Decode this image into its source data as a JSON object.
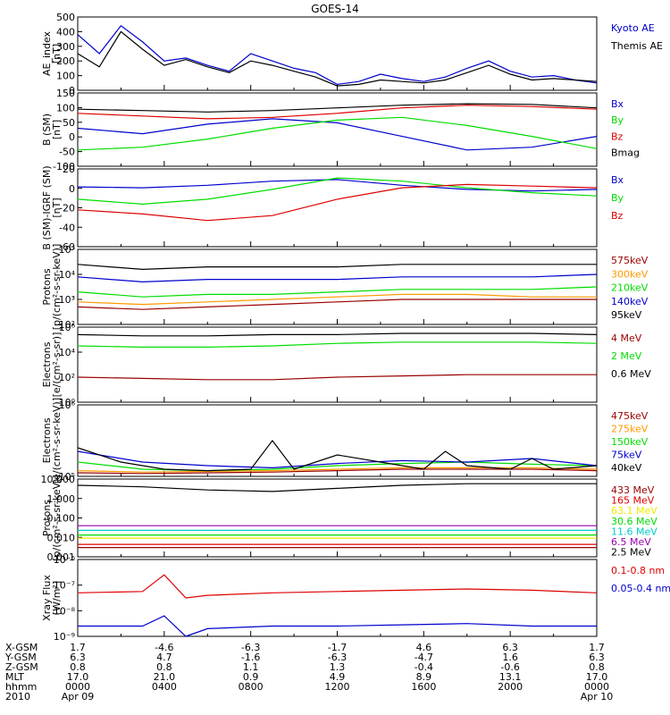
{
  "title": "GOES-14",
  "colors": {
    "black": "#000000",
    "blue": "#0000cc",
    "green": "#00dd00",
    "red": "#dd0000",
    "orange": "#ff9900",
    "darkred": "#990000",
    "yellow": "#eeee00",
    "cyan": "#00cccc",
    "teal": "#00bbbb",
    "purple": "#9900aa"
  },
  "time_axis": {
    "rows": [
      {
        "label": "X-GSM",
        "values": [
          "1.7",
          "-4.6",
          "-6.3",
          "-1.7",
          "4.6",
          "6.3",
          "1.7"
        ]
      },
      {
        "label": "Y-GSM",
        "values": [
          "6.3",
          "4.7",
          "-1.6",
          "-6.3",
          "-4.7",
          "1.6",
          "6.3"
        ]
      },
      {
        "label": "Z-GSM",
        "values": [
          "0.8",
          "0.8",
          "1.1",
          "1.3",
          "-0.4",
          "-0.6",
          "0.8"
        ]
      },
      {
        "label": "MLT",
        "values": [
          "17.0",
          "21.0",
          "0.9",
          "4.9",
          "8.9",
          "13.1",
          "17.0"
        ]
      },
      {
        "label": "hhmm",
        "values": [
          "0000",
          "0400",
          "0800",
          "1200",
          "1600",
          "2000",
          "0000"
        ]
      },
      {
        "label": "2010",
        "values": [
          "Apr 09",
          "",
          "",
          "",
          "",
          "",
          "Apr 10"
        ]
      }
    ]
  },
  "chart_data": [
    {
      "type": "line",
      "ylabel": "AE_index\n[nT]",
      "ylim": [
        0,
        500
      ],
      "scale": "linear",
      "yticks": [
        "500",
        "400",
        "300",
        "200",
        "100",
        "0"
      ],
      "series": [
        {
          "name": "Kyoto AE",
          "color": "#0000cc",
          "x": [
            0,
            1,
            2,
            3,
            4,
            5,
            6,
            7,
            8,
            9,
            10,
            11,
            12,
            13,
            14,
            15,
            16,
            17,
            18,
            19,
            20,
            21,
            22,
            23,
            24
          ],
          "y": [
            380,
            250,
            440,
            330,
            200,
            220,
            170,
            130,
            250,
            200,
            150,
            120,
            40,
            60,
            110,
            80,
            60,
            90,
            150,
            200,
            130,
            90,
            100,
            70,
            50
          ]
        },
        {
          "name": "Themis AE",
          "color": "#000000",
          "x": [
            0,
            1,
            2,
            3,
            4,
            5,
            6,
            7,
            8,
            9,
            10,
            11,
            12,
            13,
            14,
            15,
            16,
            17,
            18,
            19,
            20,
            21,
            22,
            23,
            24
          ],
          "y": [
            250,
            160,
            400,
            280,
            170,
            210,
            160,
            120,
            200,
            170,
            130,
            90,
            30,
            40,
            70,
            60,
            50,
            70,
            120,
            170,
            110,
            70,
            80,
            70,
            60
          ]
        }
      ]
    },
    {
      "type": "line",
      "ylabel": "B (SM)\n[nT]",
      "ylim": [
        -120,
        150
      ],
      "scale": "linear",
      "yticks": [
        "150",
        "100",
        "50",
        "0",
        "-50",
        "-100"
      ],
      "series": [
        {
          "name": "Bx",
          "color": "#0000cc",
          "x": [
            0,
            3,
            6,
            9,
            12,
            15,
            18,
            21,
            24
          ],
          "y": [
            20,
            0,
            35,
            55,
            40,
            -10,
            -60,
            -50,
            -10
          ]
        },
        {
          "name": "By",
          "color": "#00dd00",
          "x": [
            0,
            3,
            6,
            9,
            12,
            15,
            18,
            21,
            24
          ],
          "y": [
            -60,
            -50,
            -20,
            20,
            50,
            60,
            30,
            -10,
            -55
          ]
        },
        {
          "name": "Bz",
          "color": "#dd0000",
          "x": [
            0,
            3,
            6,
            9,
            12,
            15,
            18,
            21,
            24
          ],
          "y": [
            75,
            65,
            55,
            60,
            75,
            95,
            105,
            100,
            90
          ]
        },
        {
          "name": "Bmag",
          "color": "#000000",
          "x": [
            0,
            3,
            6,
            9,
            12,
            15,
            18,
            21,
            24
          ],
          "y": [
            90,
            85,
            80,
            85,
            95,
            105,
            110,
            108,
            95
          ]
        }
      ]
    },
    {
      "type": "line",
      "ylabel": "B (SM)-IGRF (SM)\n[nT]",
      "ylim": [
        -70,
        25
      ],
      "scale": "linear",
      "yticks": [
        "20",
        "0",
        "-20",
        "-40",
        "-60"
      ],
      "series": [
        {
          "name": "Bx",
          "color": "#0000cc",
          "x": [
            0,
            3,
            6,
            9,
            12,
            15,
            18,
            21,
            24
          ],
          "y": [
            3,
            2,
            5,
            10,
            12,
            5,
            0,
            -2,
            0
          ]
        },
        {
          "name": "By",
          "color": "#00dd00",
          "x": [
            0,
            3,
            6,
            9,
            12,
            15,
            18,
            21,
            24
          ],
          "y": [
            -12,
            -18,
            -12,
            0,
            14,
            10,
            2,
            -4,
            -8
          ]
        },
        {
          "name": "Bz",
          "color": "#dd0000",
          "x": [
            0,
            3,
            6,
            9,
            12,
            15,
            18,
            21,
            24
          ],
          "y": [
            -25,
            -30,
            -38,
            -32,
            -12,
            2,
            6,
            4,
            2
          ]
        }
      ]
    },
    {
      "type": "line",
      "ylabel": "Protons\n[p/(cm²-s-sr-keV)]",
      "ylim": [
        2,
        5
      ],
      "scale": "log",
      "yticks": [
        "10⁵",
        "10⁴",
        "10³",
        "10²"
      ],
      "series": [
        {
          "name": "575keV",
          "color": "#990000",
          "x": [
            0,
            3,
            6,
            9,
            12,
            15,
            18,
            21,
            24
          ],
          "y": [
            2.7,
            2.6,
            2.7,
            2.8,
            2.9,
            3.0,
            3.0,
            3.0,
            3.0
          ]
        },
        {
          "name": "300keV",
          "color": "#ff9900",
          "x": [
            0,
            3,
            6,
            9,
            12,
            15,
            18,
            21,
            24
          ],
          "y": [
            2.9,
            2.8,
            2.9,
            3.0,
            3.1,
            3.2,
            3.2,
            3.1,
            3.1
          ]
        },
        {
          "name": "210keV",
          "color": "#00dd00",
          "x": [
            0,
            3,
            6,
            9,
            12,
            15,
            18,
            21,
            24
          ],
          "y": [
            3.3,
            3.1,
            3.2,
            3.2,
            3.3,
            3.4,
            3.4,
            3.4,
            3.5
          ]
        },
        {
          "name": "140keV",
          "color": "#0000cc",
          "x": [
            0,
            3,
            6,
            9,
            12,
            15,
            18,
            21,
            24
          ],
          "y": [
            3.9,
            3.7,
            3.8,
            3.8,
            3.8,
            3.9,
            3.9,
            3.9,
            4.0
          ]
        },
        {
          "name": "95keV",
          "color": "#000000",
          "x": [
            0,
            3,
            6,
            9,
            12,
            15,
            18,
            21,
            24
          ],
          "y": [
            4.4,
            4.2,
            4.3,
            4.3,
            4.3,
            4.4,
            4.4,
            4.4,
            4.4
          ]
        }
      ]
    },
    {
      "type": "line",
      "ylabel": "Electrons\n[e/(cm²-s-sr)]",
      "ylim": [
        0,
        6
      ],
      "scale": "log",
      "yticks": [
        "10⁶",
        "10⁴",
        "10²",
        "10⁰"
      ],
      "series": [
        {
          "name": "4 MeV",
          "color": "#990000",
          "x": [
            0,
            3,
            6,
            9,
            12,
            15,
            18,
            21,
            24
          ],
          "y": [
            2,
            1.9,
            1.8,
            1.8,
            2.0,
            2.1,
            2.2,
            2.2,
            2.2
          ]
        },
        {
          "name": "2 MeV",
          "color": "#00dd00",
          "x": [
            0,
            3,
            6,
            9,
            12,
            15,
            18,
            21,
            24
          ],
          "y": [
            4.5,
            4.4,
            4.4,
            4.5,
            4.7,
            4.8,
            4.8,
            4.8,
            4.7
          ]
        },
        {
          "name": "0.6 MeV",
          "color": "#000000",
          "x": [
            0,
            3,
            6,
            9,
            12,
            15,
            18,
            21,
            24
          ],
          "y": [
            5.4,
            5.3,
            5.3,
            5.4,
            5.4,
            5.5,
            5.5,
            5.5,
            5.4
          ]
        }
      ]
    },
    {
      "type": "line",
      "ylabel": "Electrons\n[e/(cm²-s-sr-keV)]",
      "ylim": [
        5,
        6
      ],
      "scale": "log",
      "yticks": [
        "10⁶",
        "10⁵"
      ],
      "series": [
        {
          "name": "475keV",
          "color": "#990000",
          "x": [
            0,
            3,
            6,
            9,
            12,
            15,
            18,
            21,
            24
          ],
          "y": [
            5.05,
            5.04,
            5.05,
            5.06,
            5.08,
            5.1,
            5.1,
            5.1,
            5.08
          ]
        },
        {
          "name": "275keV",
          "color": "#ff9900",
          "x": [
            0,
            3,
            6,
            9,
            12,
            15,
            18,
            21,
            24
          ],
          "y": [
            5.08,
            5.06,
            5.07,
            5.08,
            5.1,
            5.12,
            5.12,
            5.12,
            5.1
          ]
        },
        {
          "name": "150keV",
          "color": "#00dd00",
          "x": [
            0,
            3,
            6,
            9,
            12,
            15,
            18,
            21,
            24
          ],
          "y": [
            5.2,
            5.1,
            5.08,
            5.1,
            5.15,
            5.18,
            5.2,
            5.17,
            5.15
          ]
        },
        {
          "name": "75keV",
          "color": "#0000cc",
          "x": [
            0,
            3,
            6,
            9,
            12,
            15,
            18,
            21,
            24
          ],
          "y": [
            5.35,
            5.2,
            5.15,
            5.12,
            5.18,
            5.22,
            5.2,
            5.25,
            5.15
          ]
        },
        {
          "name": "40keV",
          "color": "#000000",
          "x": [
            0,
            2,
            4,
            6,
            8,
            9,
            10,
            12,
            14,
            16,
            17,
            18,
            20,
            21,
            22,
            24
          ],
          "y": [
            5.4,
            5.2,
            5.1,
            5.08,
            5.1,
            5.5,
            5.1,
            5.3,
            5.2,
            5.1,
            5.35,
            5.15,
            5.1,
            5.25,
            5.1,
            5.15
          ]
        }
      ]
    },
    {
      "type": "line",
      "ylabel": "Protons\n[p/(cm²-s-sr-keV)]",
      "ylim": [
        -3,
        2
      ],
      "scale": "log",
      "yticks": [
        "10.000",
        "1.000",
        "0.100",
        "0.010",
        "0.001"
      ],
      "series": [
        {
          "name": "433 MeV",
          "color": "#990000",
          "x": [
            0,
            24
          ],
          "y": [
            -2.4,
            -2.4
          ]
        },
        {
          "name": "165 MeV",
          "color": "#dd0000",
          "x": [
            0,
            24
          ],
          "y": [
            -2.2,
            -2.2
          ]
        },
        {
          "name": "63.1 MeV",
          "color": "#eeee00",
          "x": [
            0,
            24
          ],
          "y": [
            -1.8,
            -1.8
          ]
        },
        {
          "name": "30.6 MeV",
          "color": "#00dd00",
          "x": [
            0,
            24
          ],
          "y": [
            -1.6,
            -1.6
          ]
        },
        {
          "name": "11.6 MeV",
          "color": "#00cccc",
          "x": [
            0,
            24
          ],
          "y": [
            -1.3,
            -1.3
          ]
        },
        {
          "name": "6.5 MeV",
          "color": "#9900aa",
          "x": [
            0,
            24
          ],
          "y": [
            -1.0,
            -1.0
          ]
        },
        {
          "name": "2.5 MeV",
          "color": "#000000",
          "x": [
            0,
            3,
            6,
            9,
            12,
            15,
            18,
            21,
            24
          ],
          "y": [
            1.6,
            1.5,
            1.3,
            1.2,
            1.4,
            1.6,
            1.7,
            1.7,
            1.7
          ]
        }
      ]
    },
    {
      "type": "line",
      "ylabel": "Xray Flux\n[W/m²]",
      "ylim": [
        -9,
        -6
      ],
      "scale": "log",
      "yticks": [
        "10⁻⁶",
        "10⁻⁷",
        "10⁻⁸",
        "10⁻⁹"
      ],
      "series": [
        {
          "name": "0.1-0.8 nm",
          "color": "#dd0000",
          "x": [
            0,
            3,
            4,
            5,
            6,
            9,
            12,
            15,
            18,
            21,
            24
          ],
          "y": [
            -7.3,
            -7.25,
            -6.6,
            -7.5,
            -7.4,
            -7.3,
            -7.25,
            -7.2,
            -7.15,
            -7.2,
            -7.3
          ]
        },
        {
          "name": "0.05-0.4 nm",
          "color": "#0000cc",
          "x": [
            0,
            3,
            4,
            5,
            6,
            9,
            12,
            15,
            18,
            21,
            24
          ],
          "y": [
            -8.6,
            -8.6,
            -8.2,
            -9.0,
            -8.7,
            -8.6,
            -8.6,
            -8.55,
            -8.5,
            -8.6,
            -8.6
          ]
        }
      ]
    }
  ]
}
